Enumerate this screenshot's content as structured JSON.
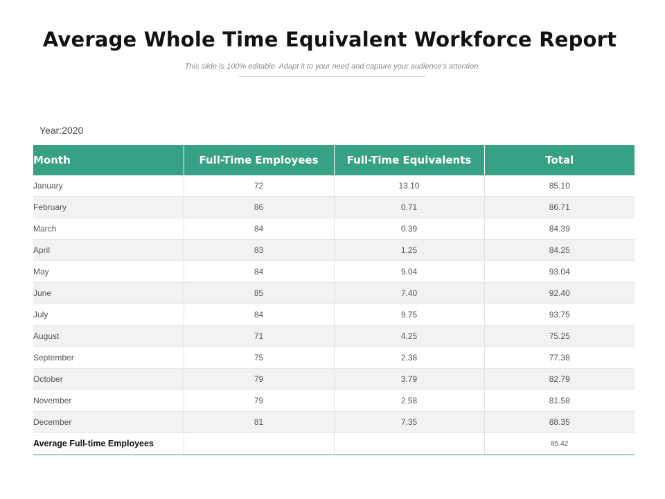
{
  "title": "Average Whole Time Equivalent Workforce Report",
  "subtitle": "This slide is 100% editable. Adapt it to your need and capture your audience’s attention.",
  "year_label": "Year:2020",
  "table": {
    "headers": [
      "Month",
      "Full-Time Employees",
      "Full-Time Equivalents",
      "Total"
    ],
    "rows": [
      [
        "January",
        "72",
        "13.10",
        "85.10"
      ],
      [
        "February",
        "86",
        "0.71",
        "86.71"
      ],
      [
        "March",
        "84",
        "0.39",
        "84.39"
      ],
      [
        "April",
        "83",
        "1.25",
        "84.25"
      ],
      [
        "May",
        "84",
        "9.04",
        "93.04"
      ],
      [
        "June",
        "85",
        "7.40",
        "92.40"
      ],
      [
        "July",
        "84",
        "9.75",
        "93.75"
      ],
      [
        "August",
        "71",
        "4.25",
        "75.25"
      ],
      [
        "September",
        "75",
        "2.38",
        "77.38"
      ],
      [
        "October",
        "79",
        "3.79",
        "82.79"
      ],
      [
        "November",
        "79",
        "2.58",
        "81.58"
      ],
      [
        "December",
        "81",
        "7.35",
        "88.35"
      ]
    ],
    "footer": {
      "label": "Average Full-time Employees",
      "employees": "",
      "equivalents": "",
      "total": "85.42"
    }
  },
  "colors": {
    "header_bg": "#36a184",
    "alt_row_bg": "#f2f2f2"
  }
}
